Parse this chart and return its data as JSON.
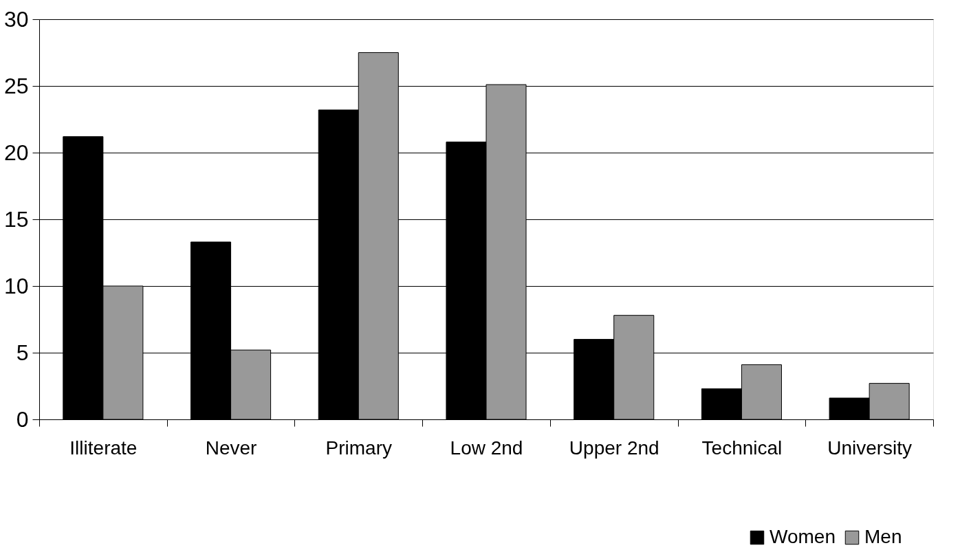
{
  "chart_data": {
    "type": "bar",
    "categories": [
      "Illiterate",
      "Never",
      "Primary",
      "Low 2nd",
      "Upper 2nd",
      "Technical",
      "University"
    ],
    "series": [
      {
        "name": "Women",
        "color": "#000000",
        "values": [
          21.2,
          13.3,
          23.2,
          20.8,
          6.0,
          2.3,
          1.6
        ]
      },
      {
        "name": "Men",
        "color": "#999999",
        "values": [
          10.0,
          5.2,
          27.5,
          25.1,
          7.8,
          4.1,
          2.7
        ]
      }
    ],
    "ylim": [
      0,
      30
    ],
    "yticks": [
      0,
      5,
      10,
      15,
      20,
      25,
      30
    ],
    "grid": "y",
    "legend": "bottom right"
  }
}
